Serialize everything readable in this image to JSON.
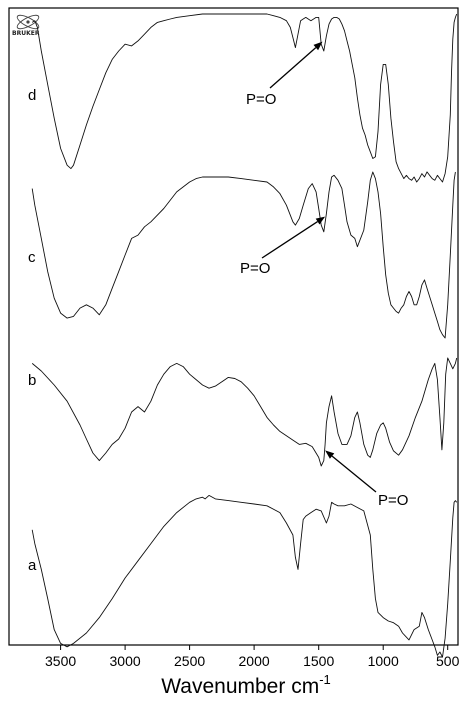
{
  "chart_data": {
    "type": "line",
    "title": "",
    "xlabel": "Wavenumber cm",
    "xlabel_superscript": "-1",
    "xlim": [
      3900,
      420
    ],
    "x_reversed": true,
    "x_ticks": [
      3500,
      3000,
      2500,
      2000,
      1500,
      1000,
      500
    ],
    "y_axis_shown": false,
    "grid": false,
    "series": [
      {
        "name": "a",
        "x": [
          3720,
          3700,
          3650,
          3600,
          3550,
          3500,
          3450,
          3400,
          3300,
          3200,
          3100,
          3000,
          2900,
          2800,
          2700,
          2600,
          2500,
          2450,
          2400,
          2380,
          2350,
          2300,
          2200,
          2100,
          2000,
          1900,
          1800,
          1750,
          1700,
          1680,
          1660,
          1640,
          1620,
          1600,
          1560,
          1520,
          1480,
          1440,
          1420,
          1400,
          1380,
          1350,
          1300,
          1250,
          1200,
          1150,
          1100,
          1080,
          1060,
          1040,
          1000,
          960,
          920,
          880,
          850,
          800,
          760,
          720,
          700,
          680,
          650,
          620,
          600,
          580,
          560,
          540,
          520,
          500,
          480,
          460,
          450,
          440,
          430
        ],
        "y": [
          0.22,
          0.3,
          0.45,
          0.62,
          0.8,
          0.88,
          0.9,
          0.88,
          0.82,
          0.73,
          0.62,
          0.5,
          0.4,
          0.3,
          0.2,
          0.12,
          0.06,
          0.04,
          0.03,
          0.04,
          0.02,
          0.04,
          0.05,
          0.06,
          0.07,
          0.08,
          0.12,
          0.18,
          0.25,
          0.38,
          0.45,
          0.3,
          0.16,
          0.14,
          0.12,
          0.1,
          0.11,
          0.18,
          0.14,
          0.06,
          0.07,
          0.08,
          0.08,
          0.07,
          0.09,
          0.11,
          0.25,
          0.45,
          0.62,
          0.7,
          0.73,
          0.75,
          0.76,
          0.78,
          0.82,
          0.86,
          0.8,
          0.78,
          0.7,
          0.73,
          0.8,
          0.86,
          0.9,
          0.95,
          0.93,
          0.96,
          0.85,
          0.65,
          0.4,
          0.15,
          0.06,
          0.05,
          0.06
        ]
      },
      {
        "name": "b",
        "x": [
          3720,
          3650,
          3550,
          3450,
          3350,
          3300,
          3250,
          3200,
          3150,
          3100,
          3050,
          3000,
          2950,
          2900,
          2850,
          2800,
          2750,
          2700,
          2650,
          2600,
          2550,
          2500,
          2450,
          2400,
          2350,
          2300,
          2250,
          2200,
          2150,
          2100,
          2050,
          2000,
          1950,
          1900,
          1850,
          1800,
          1750,
          1700,
          1650,
          1600,
          1550,
          1500,
          1480,
          1460,
          1450,
          1440,
          1420,
          1400,
          1380,
          1350,
          1320,
          1280,
          1250,
          1220,
          1200,
          1180,
          1150,
          1120,
          1100,
          1080,
          1050,
          1020,
          1000,
          980,
          950,
          920,
          880,
          850,
          800,
          750,
          700,
          650,
          620,
          600,
          580,
          560,
          545,
          530,
          515,
          500,
          480,
          460,
          440,
          430
        ],
        "y": [
          0.05,
          0.12,
          0.25,
          0.4,
          0.62,
          0.75,
          0.88,
          0.95,
          0.88,
          0.8,
          0.75,
          0.65,
          0.5,
          0.45,
          0.5,
          0.4,
          0.25,
          0.15,
          0.08,
          0.05,
          0.08,
          0.15,
          0.2,
          0.25,
          0.28,
          0.26,
          0.22,
          0.18,
          0.19,
          0.22,
          0.28,
          0.35,
          0.45,
          0.55,
          0.62,
          0.68,
          0.72,
          0.76,
          0.8,
          0.79,
          0.82,
          0.92,
          1.0,
          0.95,
          0.8,
          0.6,
          0.45,
          0.35,
          0.5,
          0.7,
          0.8,
          0.8,
          0.72,
          0.55,
          0.5,
          0.6,
          0.8,
          0.9,
          0.92,
          0.85,
          0.7,
          0.62,
          0.6,
          0.65,
          0.78,
          0.86,
          0.9,
          0.85,
          0.72,
          0.55,
          0.4,
          0.2,
          0.1,
          0.05,
          0.2,
          0.55,
          0.85,
          0.6,
          0.15,
          0.0,
          0.05,
          0.1,
          0.05,
          0.0
        ]
      },
      {
        "name": "c",
        "x": [
          3720,
          3700,
          3650,
          3600,
          3550,
          3500,
          3450,
          3400,
          3350,
          3300,
          3250,
          3200,
          3150,
          3100,
          3050,
          3000,
          2950,
          2900,
          2850,
          2800,
          2700,
          2600,
          2500,
          2450,
          2400,
          2300,
          2200,
          2100,
          2000,
          1900,
          1850,
          1800,
          1750,
          1700,
          1680,
          1650,
          1620,
          1580,
          1550,
          1520,
          1500,
          1480,
          1460,
          1440,
          1420,
          1400,
          1380,
          1350,
          1320,
          1300,
          1280,
          1250,
          1220,
          1200,
          1150,
          1120,
          1100,
          1080,
          1060,
          1040,
          1020,
          1000,
          980,
          960,
          940,
          920,
          900,
          880,
          860,
          840,
          820,
          800,
          780,
          760,
          740,
          720,
          700,
          680,
          660,
          640,
          620,
          600,
          580,
          560,
          540,
          520,
          500,
          480,
          460,
          450,
          440
        ],
        "y": [
          0.1,
          0.2,
          0.4,
          0.6,
          0.76,
          0.85,
          0.88,
          0.87,
          0.82,
          0.8,
          0.82,
          0.86,
          0.8,
          0.7,
          0.6,
          0.5,
          0.4,
          0.38,
          0.33,
          0.3,
          0.22,
          0.12,
          0.06,
          0.04,
          0.03,
          0.03,
          0.03,
          0.04,
          0.05,
          0.06,
          0.09,
          0.13,
          0.2,
          0.3,
          0.32,
          0.28,
          0.2,
          0.1,
          0.07,
          0.12,
          0.22,
          0.32,
          0.36,
          0.25,
          0.12,
          0.03,
          0.02,
          0.05,
          0.1,
          0.2,
          0.3,
          0.38,
          0.4,
          0.45,
          0.35,
          0.18,
          0.05,
          0.0,
          0.04,
          0.12,
          0.25,
          0.45,
          0.62,
          0.73,
          0.8,
          0.82,
          0.84,
          0.85,
          0.82,
          0.8,
          0.75,
          0.72,
          0.75,
          0.8,
          0.8,
          0.75,
          0.68,
          0.65,
          0.7,
          0.75,
          0.8,
          0.85,
          0.9,
          0.95,
          0.98,
          1.0,
          0.8,
          0.5,
          0.2,
          0.05,
          0.0
        ]
      },
      {
        "name": "d",
        "x": [
          3720,
          3700,
          3680,
          3650,
          3600,
          3550,
          3500,
          3450,
          3420,
          3400,
          3350,
          3300,
          3250,
          3200,
          3150,
          3100,
          3050,
          3000,
          2950,
          2900,
          2850,
          2800,
          2750,
          2700,
          2650,
          2600,
          2500,
          2400,
          2300,
          2200,
          2100,
          2000,
          1900,
          1850,
          1800,
          1750,
          1720,
          1700,
          1680,
          1660,
          1640,
          1620,
          1600,
          1560,
          1520,
          1500,
          1480,
          1460,
          1440,
          1420,
          1400,
          1380,
          1360,
          1340,
          1320,
          1300,
          1280,
          1260,
          1240,
          1220,
          1200,
          1180,
          1160,
          1140,
          1120,
          1100,
          1080,
          1060,
          1040,
          1020,
          1000,
          980,
          960,
          940,
          920,
          900,
          880,
          860,
          840,
          820,
          800,
          780,
          760,
          740,
          720,
          700,
          680,
          660,
          640,
          620,
          600,
          580,
          560,
          540,
          520,
          500,
          480,
          470,
          460,
          450,
          440,
          430
        ],
        "y": [
          0.05,
          0.04,
          0.08,
          0.22,
          0.42,
          0.62,
          0.8,
          0.9,
          0.92,
          0.9,
          0.78,
          0.66,
          0.55,
          0.45,
          0.35,
          0.27,
          0.22,
          0.18,
          0.19,
          0.16,
          0.12,
          0.08,
          0.05,
          0.04,
          0.03,
          0.02,
          0.01,
          0.0,
          0.0,
          0.0,
          0.0,
          0.0,
          0.0,
          0.01,
          0.02,
          0.04,
          0.08,
          0.14,
          0.2,
          0.12,
          0.04,
          0.03,
          0.02,
          0.04,
          0.02,
          0.02,
          0.18,
          0.22,
          0.13,
          0.06,
          0.03,
          0.02,
          0.02,
          0.03,
          0.06,
          0.1,
          0.16,
          0.22,
          0.3,
          0.38,
          0.5,
          0.6,
          0.68,
          0.72,
          0.78,
          0.82,
          0.86,
          0.85,
          0.7,
          0.42,
          0.3,
          0.3,
          0.42,
          0.62,
          0.76,
          0.88,
          0.92,
          0.95,
          0.98,
          0.96,
          0.98,
          0.99,
          0.97,
          1.0,
          0.98,
          0.95,
          0.97,
          0.94,
          0.96,
          0.98,
          0.99,
          0.96,
          0.98,
          1.0,
          0.95,
          0.85,
          0.6,
          0.35,
          0.15,
          0.05,
          0.02,
          0.0
        ]
      }
    ],
    "annotations": [
      {
        "text": "P=O",
        "target_series": "d",
        "target_x": 1470
      },
      {
        "text": "P=O",
        "target_series": "c",
        "target_x": 1450
      },
      {
        "text": "P=O",
        "target_series": "b",
        "target_x": 1450
      }
    ]
  },
  "logo": {
    "text": "BRUKER"
  }
}
